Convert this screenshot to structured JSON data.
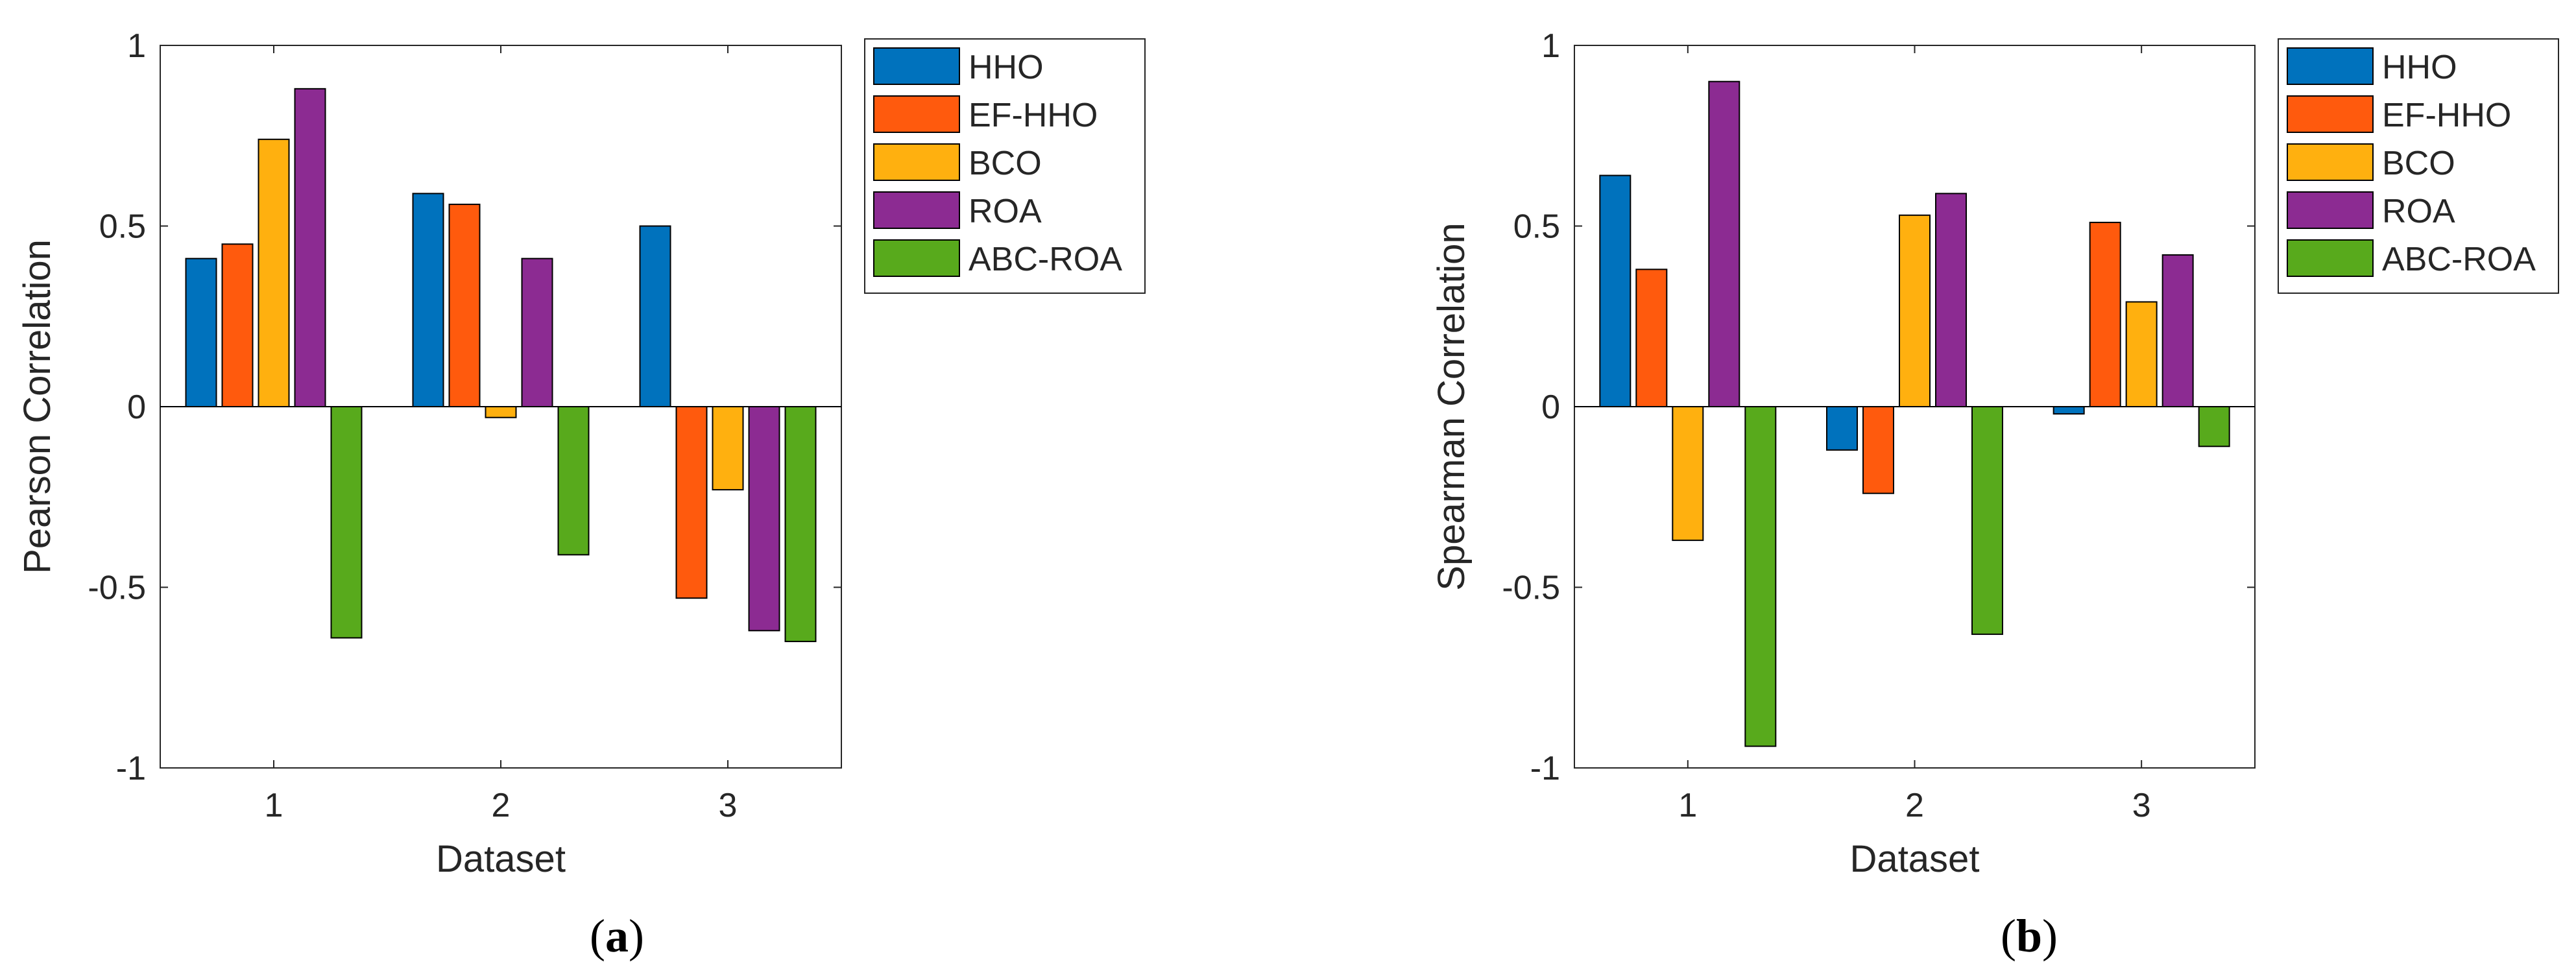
{
  "chart_data": [
    {
      "type": "bar",
      "title": "",
      "xlabel": "Dataset",
      "ylabel": "Pearson Correlation",
      "categories": [
        "1",
        "2",
        "3"
      ],
      "ylim": [
        -1,
        1
      ],
      "yticks": [
        {
          "value": 1,
          "label": "1"
        },
        {
          "value": 0.5,
          "label": "0.5"
        },
        {
          "value": 0,
          "label": "0"
        },
        {
          "value": -0.5,
          "label": "-0.5"
        },
        {
          "value": -1,
          "label": "-1"
        }
      ],
      "legend_position": "outside-right-top",
      "grid": false,
      "caption_letter": "a",
      "series": [
        {
          "name": "HHO",
          "color": "#0072BD",
          "values": [
            0.41,
            0.59,
            0.5
          ]
        },
        {
          "name": "EF-HHO",
          "color": "#FF5A0D",
          "values": [
            0.45,
            0.56,
            -0.53
          ]
        },
        {
          "name": "BCO",
          "color": "#FFB00F",
          "values": [
            0.74,
            -0.03,
            -0.23
          ]
        },
        {
          "name": "ROA",
          "color": "#8C2B92",
          "values": [
            0.88,
            0.41,
            -0.62
          ]
        },
        {
          "name": "ABC-ROA",
          "color": "#58AA1C",
          "values": [
            -0.64,
            -0.41,
            -0.65
          ]
        }
      ]
    },
    {
      "type": "bar",
      "title": "",
      "xlabel": "Dataset",
      "ylabel": "Spearman Correlation",
      "categories": [
        "1",
        "2",
        "3"
      ],
      "ylim": [
        -1,
        1
      ],
      "yticks": [
        {
          "value": 1,
          "label": "1"
        },
        {
          "value": 0.5,
          "label": "0.5"
        },
        {
          "value": 0,
          "label": "0"
        },
        {
          "value": -0.5,
          "label": "-0.5"
        },
        {
          "value": -1,
          "label": "-1"
        }
      ],
      "legend_position": "outside-right-top",
      "grid": false,
      "caption_letter": "b",
      "series": [
        {
          "name": "HHO",
          "color": "#0072BD",
          "values": [
            0.64,
            -0.12,
            -0.02
          ]
        },
        {
          "name": "EF-HHO",
          "color": "#FF5A0D",
          "values": [
            0.38,
            -0.24,
            0.51
          ]
        },
        {
          "name": "BCO",
          "color": "#FFB00F",
          "values": [
            -0.37,
            0.53,
            0.29
          ]
        },
        {
          "name": "ROA",
          "color": "#8C2B92",
          "values": [
            0.9,
            0.59,
            0.42
          ]
        },
        {
          "name": "ABC-ROA",
          "color": "#58AA1C",
          "values": [
            -0.94,
            -0.63,
            -0.11
          ]
        }
      ]
    }
  ]
}
